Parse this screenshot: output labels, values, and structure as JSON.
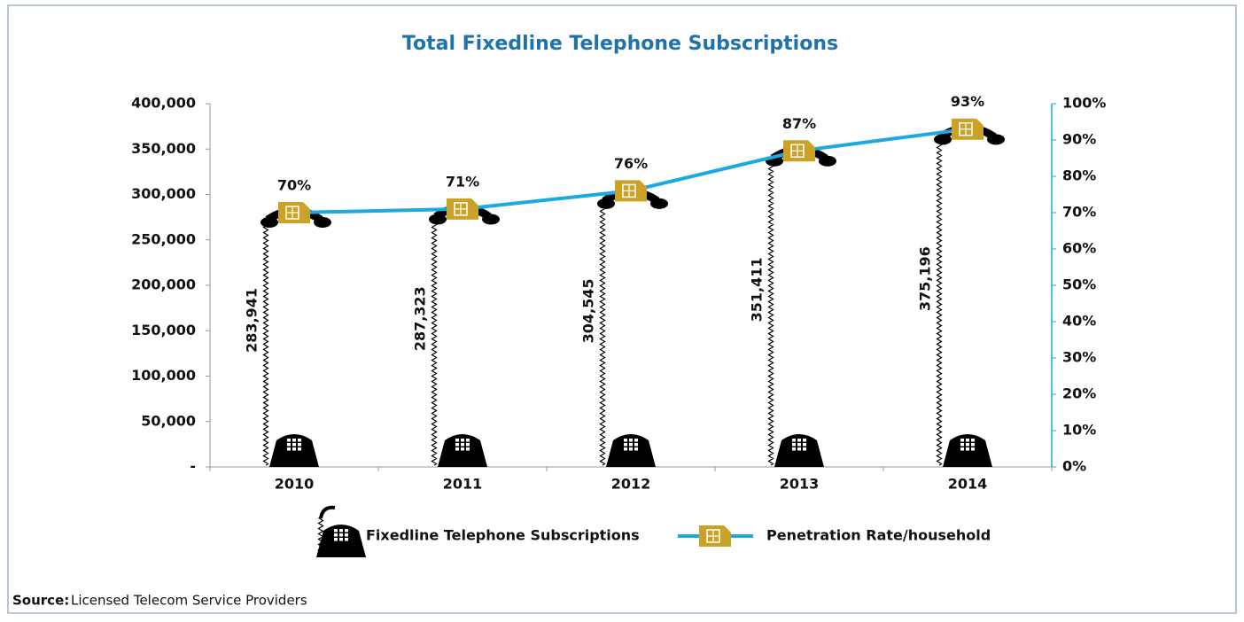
{
  "chart_data": {
    "type": "bar_line",
    "title": "Total Fixedline Telephone Subscriptions",
    "categories": [
      "2010",
      "2011",
      "2012",
      "2013",
      "2014"
    ],
    "series": [
      {
        "name": "Fixedline Telephone Subscriptions",
        "type": "bar",
        "color": "#000000",
        "values": [
          283941,
          287323,
          304545,
          351411,
          375196
        ],
        "value_labels": [
          "283,941",
          "287,323",
          "304,545",
          "351,411",
          "375,196"
        ]
      },
      {
        "name": "Penetration Rate/household",
        "type": "line",
        "axis": "y2",
        "color": "#1ba9e1",
        "marker_color": "#c9a227",
        "values": [
          70,
          71,
          76,
          87,
          93
        ],
        "value_labels": [
          "70%",
          "71%",
          "76%",
          "87%",
          "93%"
        ]
      }
    ],
    "ylim": [
      0,
      400000
    ],
    "yticks": [
      {
        "value": 0,
        "label": "-"
      },
      {
        "value": 50000,
        "label": "50,000"
      },
      {
        "value": 100000,
        "label": "100,000"
      },
      {
        "value": 150000,
        "label": "150,000"
      },
      {
        "value": 200000,
        "label": "200,000"
      },
      {
        "value": 250000,
        "label": "250,000"
      },
      {
        "value": 300000,
        "label": "300,000"
      },
      {
        "value": 350000,
        "label": "350,000"
      },
      {
        "value": 400000,
        "label": "400,000"
      }
    ],
    "y2lim": [
      0,
      100
    ],
    "y2ticks": [
      {
        "value": 0,
        "label": "0%"
      },
      {
        "value": 10,
        "label": "10%"
      },
      {
        "value": 20,
        "label": "20%"
      },
      {
        "value": 30,
        "label": "30%"
      },
      {
        "value": 40,
        "label": "40%"
      },
      {
        "value": 50,
        "label": "50%"
      },
      {
        "value": 60,
        "label": "60%"
      },
      {
        "value": 70,
        "label": "70%"
      },
      {
        "value": 80,
        "label": "80%"
      },
      {
        "value": 90,
        "label": "90%"
      },
      {
        "value": 100,
        "label": "100%"
      }
    ],
    "grid": false,
    "legend": "bottom",
    "source": {
      "label": "Source:",
      "text": "Licensed Telecom Service Providers"
    }
  }
}
